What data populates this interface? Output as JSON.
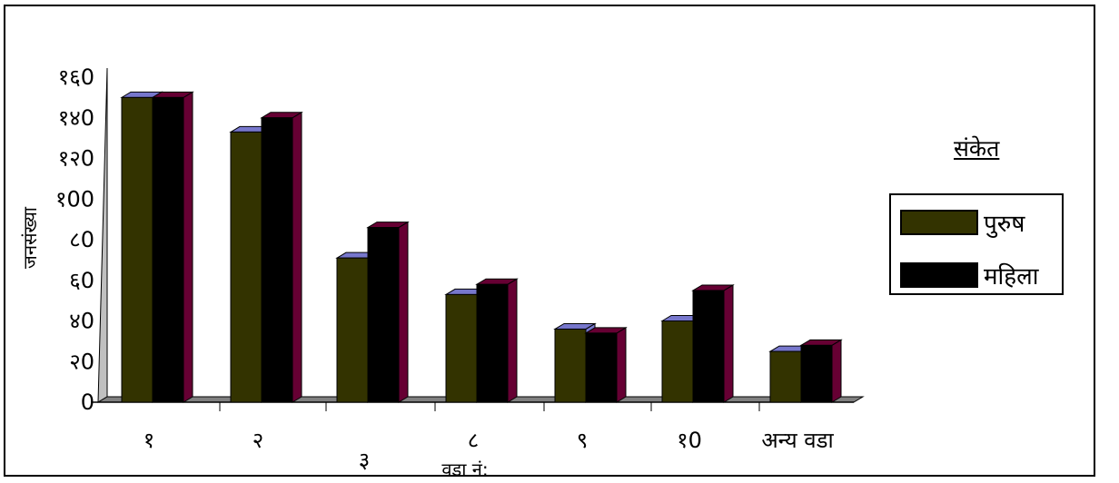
{
  "chart_data": {
    "type": "bar",
    "three_d": true,
    "title": "",
    "xlabel": "वडा नं:",
    "ylabel": "जनसंख्या",
    "ylim": [
      0,
      160
    ],
    "y_ticks": [
      "0",
      "२0",
      "४0",
      "६0",
      "८0",
      "१00",
      "१२0",
      "१४0",
      "१६0"
    ],
    "categories": [
      "१",
      "२",
      "३",
      "८",
      "९",
      "१0",
      "अन्य वडा"
    ],
    "series": [
      {
        "name": "पुरुष",
        "values": [
          150,
          133,
          71,
          53,
          36,
          40,
          25
        ],
        "color": "#333300",
        "top_color": "#7777cc"
      },
      {
        "name": "महिला",
        "values": [
          150,
          140,
          86,
          58,
          34,
          55,
          28
        ],
        "color": "#000000",
        "top_color": "#660033"
      }
    ],
    "legend": {
      "title": "संकेत",
      "placement": "right"
    },
    "grid": false,
    "floor_color": "#808080",
    "wall_color": "#c0c0c0"
  }
}
